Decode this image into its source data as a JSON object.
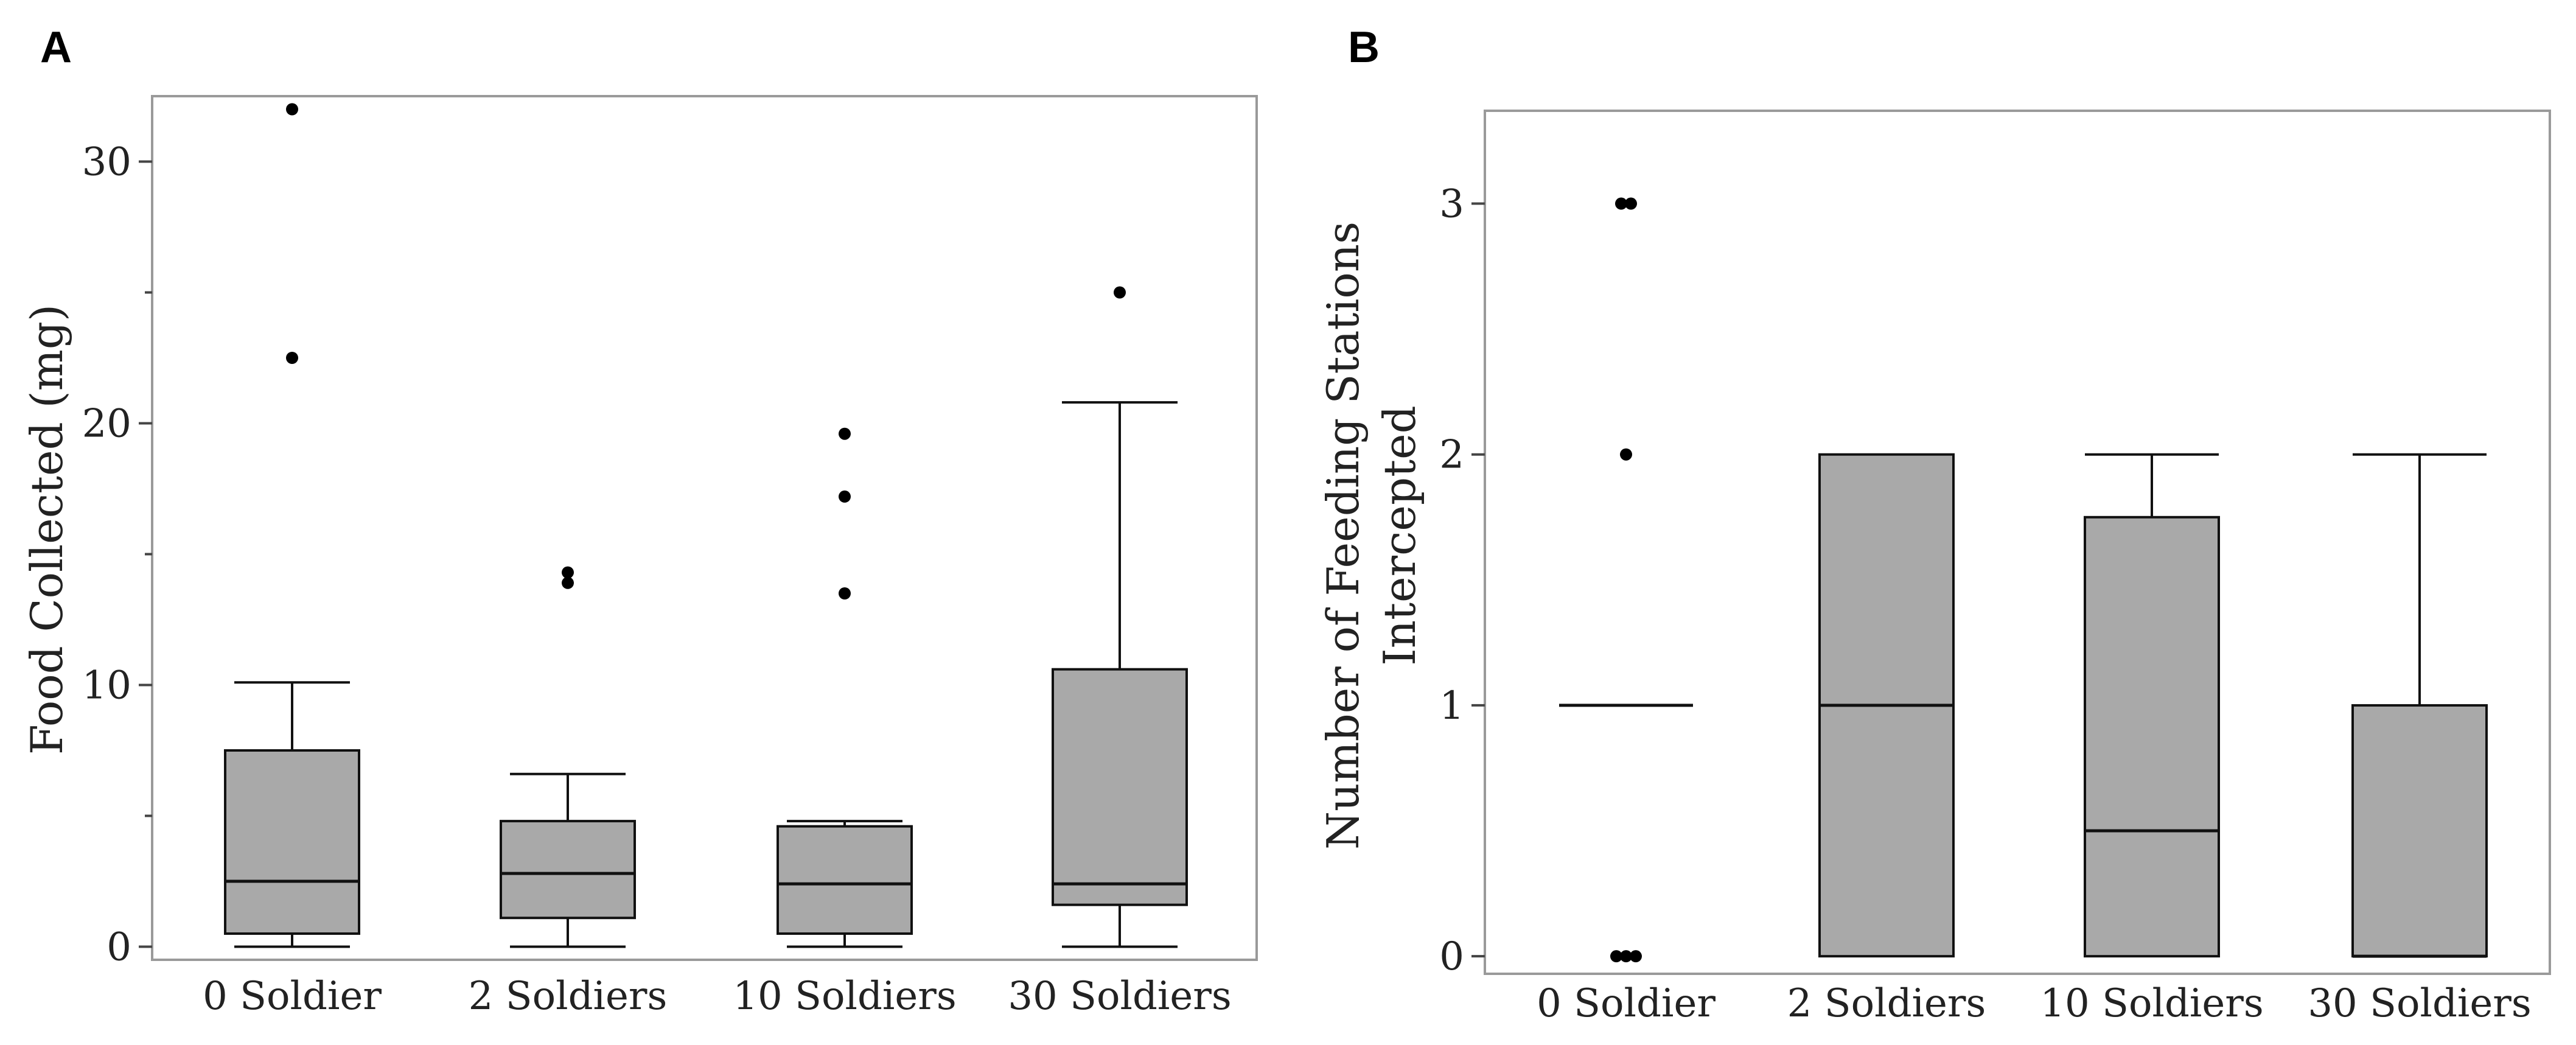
{
  "chart_data": [
    {
      "panel": "A",
      "type": "box",
      "title": "",
      "xlabel": "",
      "ylabel": "Food Collected (mg)",
      "ylim": [
        -0.5,
        32.5
      ],
      "yticks": [
        0,
        10,
        20,
        30
      ],
      "yminor_ticks": [
        5,
        15,
        25
      ],
      "box_color": "#a9a9a9",
      "categories": [
        "0 Soldier",
        "2 Soldiers",
        "10 Soldiers",
        "30 Soldiers"
      ],
      "boxes": [
        {
          "category": "0 Soldier",
          "whisker_low": 0,
          "q1": 0.5,
          "median": 2.5,
          "q3": 7.5,
          "whisker_high": 10.1,
          "outliers": [
            32.0,
            22.5
          ]
        },
        {
          "category": "2 Soldiers",
          "whisker_low": 0,
          "q1": 1.1,
          "median": 2.8,
          "q3": 4.8,
          "whisker_high": 6.6,
          "outliers": [
            14.3,
            13.9
          ]
        },
        {
          "category": "10 Soldiers",
          "whisker_low": 0,
          "q1": 0.5,
          "median": 2.4,
          "q3": 4.6,
          "whisker_high": 4.8,
          "outliers": [
            19.6,
            17.2,
            13.5
          ]
        },
        {
          "category": "30 Soldiers",
          "whisker_low": 0,
          "q1": 1.6,
          "median": 2.4,
          "q3": 10.6,
          "whisker_high": 20.8,
          "outliers": [
            25.0
          ]
        }
      ]
    },
    {
      "panel": "B",
      "type": "box",
      "title": "",
      "xlabel": "",
      "ylabel": "Number of Feeding Stations Intercepted",
      "ylabel_lines": [
        "Number of Feeding Stations",
        "Intercepted"
      ],
      "ylim": [
        -0.07,
        3.37
      ],
      "yticks": [
        0,
        1,
        2,
        3
      ],
      "box_color": "#a9a9a9",
      "categories": [
        "0 Soldier",
        "2 Soldiers",
        "10 Soldiers",
        "30 Soldiers"
      ],
      "boxes": [
        {
          "category": "0 Soldier",
          "whisker_low": 1,
          "q1": 1,
          "median": 1,
          "q3": 1,
          "whisker_high": 1,
          "outliers": [
            3,
            3,
            2,
            0,
            0,
            0
          ]
        },
        {
          "category": "2 Soldiers",
          "whisker_low": 0,
          "q1": 0,
          "median": 1,
          "q3": 2,
          "whisker_high": 2,
          "outliers": []
        },
        {
          "category": "10 Soldiers",
          "whisker_low": 0,
          "q1": 0,
          "median": 0.5,
          "q3": 1.75,
          "whisker_high": 2,
          "outliers": []
        },
        {
          "category": "30 Soldiers",
          "whisker_low": 0,
          "q1": 0,
          "median": 0,
          "q3": 1,
          "whisker_high": 2,
          "outliers": []
        }
      ]
    }
  ]
}
